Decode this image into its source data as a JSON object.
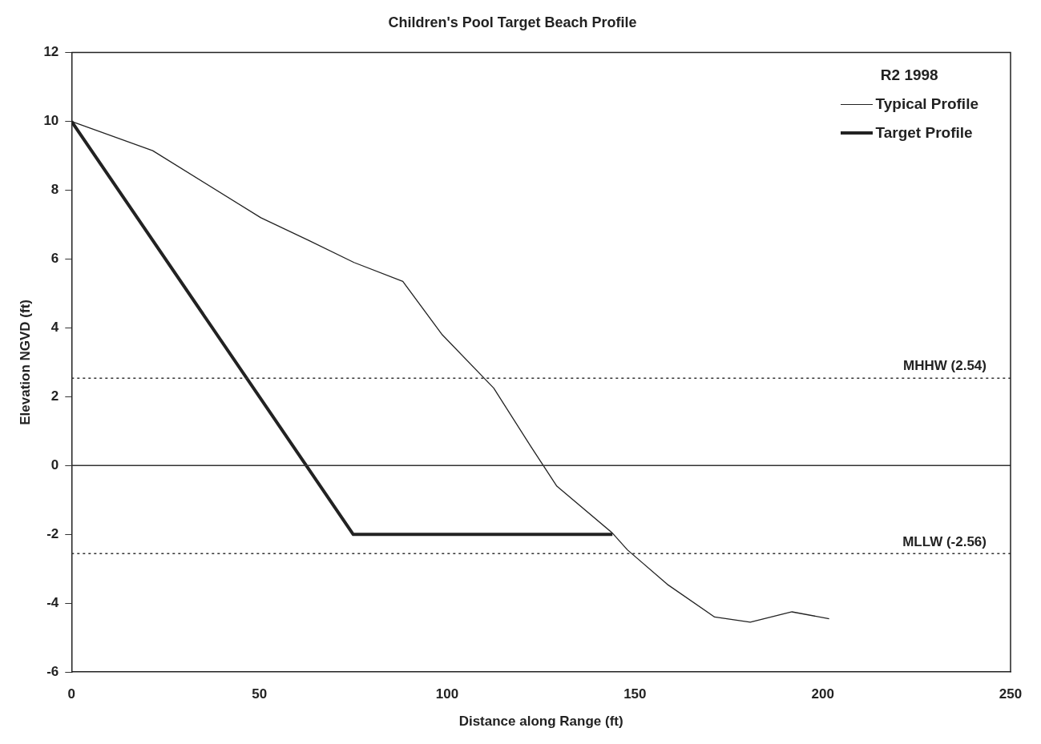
{
  "chart_data": {
    "type": "line",
    "title": "Children's Pool Target Beach Profile",
    "xlabel": "Distance along Range (ft)",
    "ylabel": "Elevation NGVD (ft)",
    "legend_title": "R2 1998",
    "legend": "top right",
    "grid": false,
    "marker": "none",
    "xlim": [
      0,
      250
    ],
    "xticks": [
      0,
      50,
      100,
      150,
      200,
      250
    ],
    "ylim": [
      -6,
      12
    ],
    "yticks": [
      -6,
      -4,
      -2,
      0,
      2,
      4,
      6,
      8,
      10,
      12
    ],
    "series": [
      {
        "name": "Typical Profile",
        "color": "#222222",
        "line_style": "solid",
        "x": [
          0,
          21.6,
          50.4,
          63,
          75.2,
          88.2,
          98.7,
          112.4,
          122.3,
          129.2,
          143.9,
          148,
          158.6,
          171.2,
          180.7,
          191.8,
          201.7
        ],
        "values": [
          10,
          9.15,
          7.2,
          6.55,
          5.9,
          5.35,
          3.8,
          2.25,
          0.55,
          -0.6,
          -1.95,
          -2.45,
          -3.45,
          -4.4,
          -4.55,
          -4.25,
          -4.45
        ]
      },
      {
        "name": "Target Profile",
        "color": "#222222",
        "line_style": "solid",
        "x": [
          0,
          75,
          144
        ],
        "values": [
          10,
          -2,
          -2
        ]
      }
    ],
    "ref_lines": [
      {
        "axis": "y",
        "value": 2.54,
        "label": "MHHW (2.54)",
        "line_style": "dotted",
        "color": "#333333"
      },
      {
        "axis": "y",
        "value": -2.56,
        "label": "MLLW (-2.56)",
        "line_style": "dotted",
        "color": "#333333"
      },
      {
        "axis": "y",
        "value": 0,
        "label": null,
        "line_style": "solid",
        "color": "#333333"
      }
    ]
  }
}
